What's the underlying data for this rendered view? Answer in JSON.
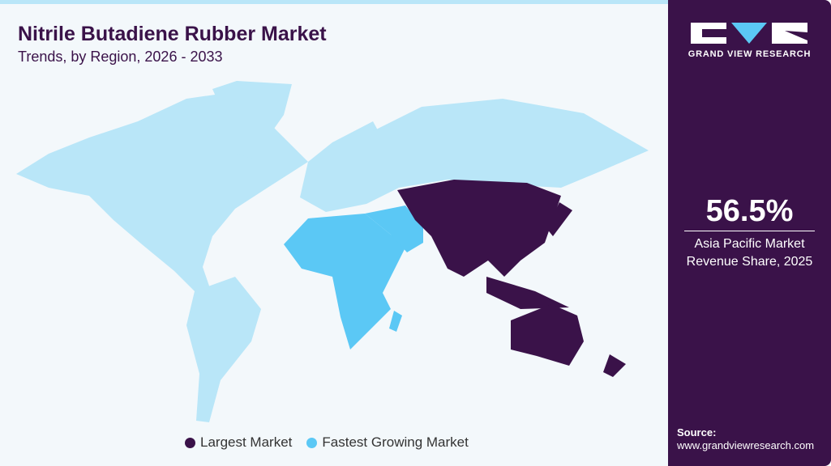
{
  "header": {
    "title": "Nitrile Butadiene Rubber Market",
    "subtitle": "Trends, by Region, 2026 - 2033"
  },
  "colors": {
    "largest": "#3a1249",
    "fastest": "#5bc8f5",
    "other": "#b9e6f8",
    "panel": "#3a1249"
  },
  "chart_data": {
    "type": "choropleth-map",
    "title": "Nitrile Butadiene Rubber Market",
    "subtitle": "Trends, by Region, 2026 - 2033",
    "regions": [
      {
        "name": "Asia Pacific",
        "category": "Largest Market"
      },
      {
        "name": "Middle East & Africa",
        "category": "Fastest Growing Market"
      },
      {
        "name": "North America",
        "category": "Other"
      },
      {
        "name": "Latin America",
        "category": "Other"
      },
      {
        "name": "Europe",
        "category": "Other"
      }
    ],
    "legend": [
      "Largest Market",
      "Fastest Growing Market"
    ],
    "legend_placement": "bottom"
  },
  "legend": {
    "largest": "Largest Market",
    "fastest": "Fastest Growing Market"
  },
  "sidebar": {
    "logo_text": "GRAND VIEW RESEARCH",
    "stat_value": "56.5%",
    "stat_label_1": "Asia Pacific Market",
    "stat_label_2": "Revenue Share, 2025",
    "source_label": "Source:",
    "source_url": "www.grandviewresearch.com"
  }
}
